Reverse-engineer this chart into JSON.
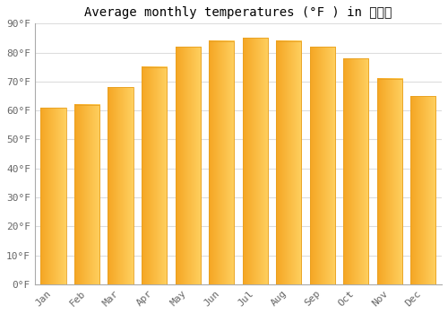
{
  "title": "Average monthly temperatures (°F ) in 东海岛",
  "months": [
    "Jan",
    "Feb",
    "Mar",
    "Apr",
    "May",
    "Jun",
    "Jul",
    "Aug",
    "Sep",
    "Oct",
    "Nov",
    "Dec"
  ],
  "values": [
    61,
    62,
    68,
    75,
    82,
    84,
    85,
    84,
    82,
    78,
    71,
    65
  ],
  "ylim": [
    0,
    90
  ],
  "yticks": [
    0,
    10,
    20,
    30,
    40,
    50,
    60,
    70,
    80,
    90
  ],
  "ytick_labels": [
    "0°F",
    "10°F",
    "20°F",
    "30°F",
    "40°F",
    "50°F",
    "60°F",
    "70°F",
    "80°F",
    "90°F"
  ],
  "bar_color_dark": "#F5A623",
  "bar_color_light": "#FFD060",
  "background_color": "#FFFFFF",
  "grid_color": "#DDDDDD",
  "title_fontsize": 10,
  "tick_fontsize": 8,
  "bar_width": 0.75
}
